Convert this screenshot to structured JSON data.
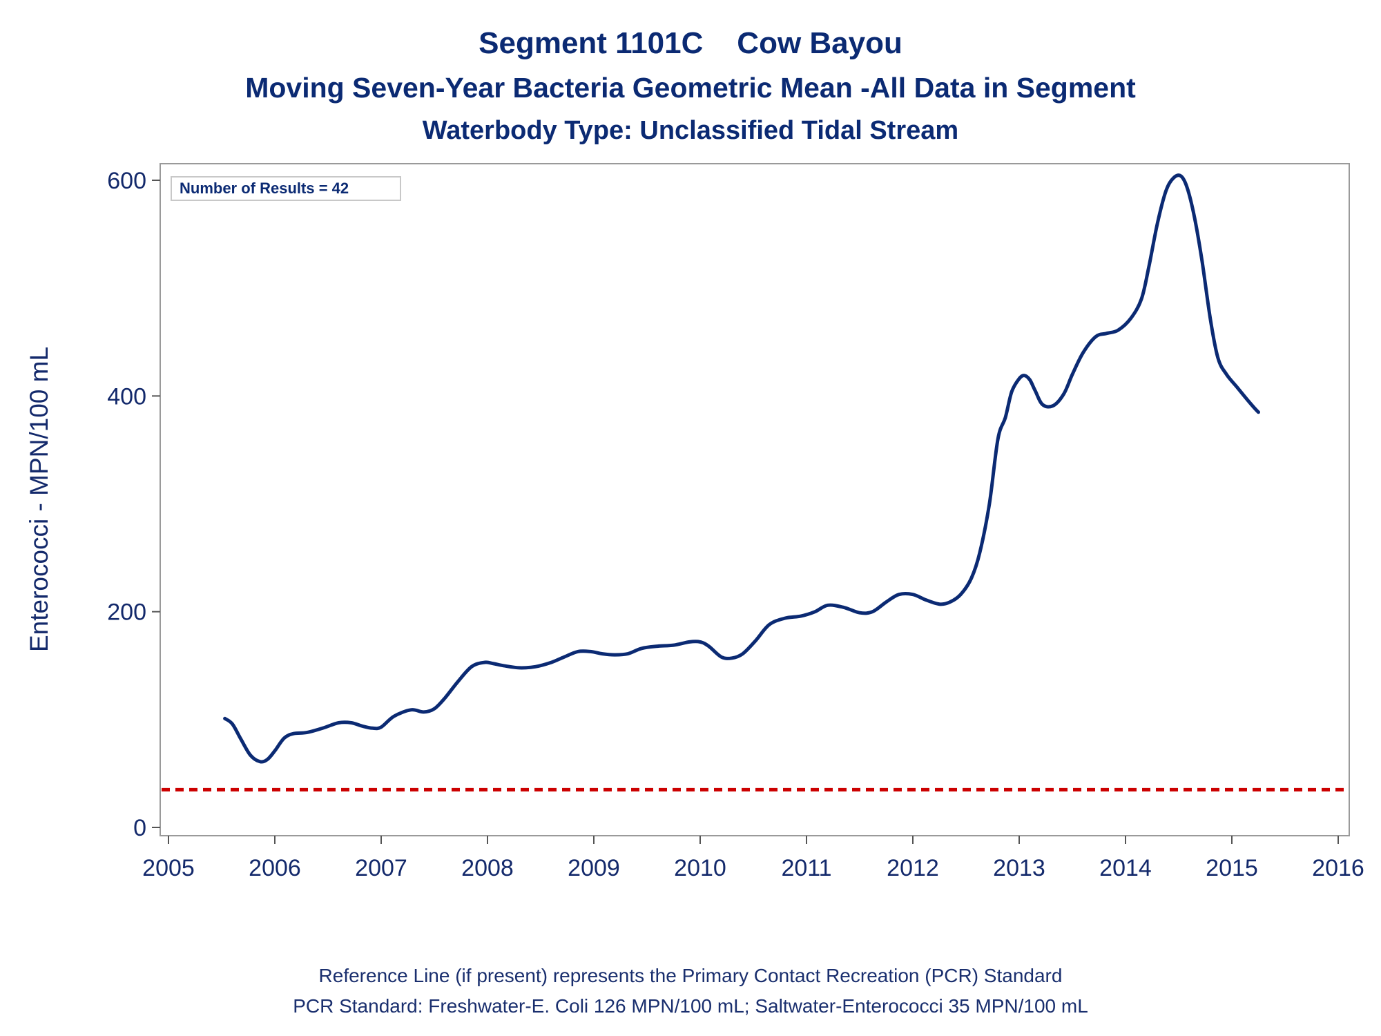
{
  "titles": {
    "line1": "Segment 1101C    Cow Bayou",
    "line2": "Moving Seven-Year Bacteria Geometric Mean -All Data in Segment",
    "line3": "Waterbody Type: Unclassified Tidal Stream"
  },
  "footnotes": {
    "line1": "Reference Line (if present) represents the Primary Contact Recreation (PCR) Standard",
    "line2": "PCR Standard: Freshwater-E. Coli 126 MPN/100 mL; Saltwater-Enterococci 35 MPN/100 mL"
  },
  "colors": {
    "series": "#0b2a73",
    "reference_line": "#cc0000",
    "axis_text": "#13296b",
    "frame": "#9a9a9a"
  },
  "chart_data": {
    "type": "line",
    "title": "Segment 1101C    Cow Bayou",
    "subtitle": "Moving Seven-Year Bacteria Geometric Mean -All Data in Segment",
    "xlabel": "",
    "ylabel": "Enterococci - MPN/100 mL",
    "xlim": [
      2005,
      2016
    ],
    "ylim": [
      -10,
      615
    ],
    "x_ticks": [
      2005,
      2006,
      2007,
      2008,
      2009,
      2010,
      2011,
      2012,
      2013,
      2014,
      2015,
      2016
    ],
    "y_ticks": [
      0,
      200,
      400,
      600
    ],
    "grid": false,
    "annotation": "Number of Results = 42",
    "reference_line": {
      "y": 35,
      "style": "dashed"
    },
    "series": [
      {
        "x": [
          2005.53,
          2005.6,
          2005.68,
          2005.77,
          2005.86,
          2005.93,
          2006.0,
          2006.09,
          2006.18,
          2006.3,
          2006.45,
          2006.6,
          2006.72,
          2006.82,
          2006.92,
          2007.0,
          2007.12,
          2007.28,
          2007.4,
          2007.5,
          2007.6,
          2007.72,
          2007.85,
          2007.97,
          2008.05,
          2008.15,
          2008.3,
          2008.45,
          2008.6,
          2008.72,
          2008.85,
          2008.97,
          2009.08,
          2009.2,
          2009.32,
          2009.45,
          2009.6,
          2009.75,
          2009.9,
          2010.0,
          2010.08,
          2010.2,
          2010.3,
          2010.4,
          2010.52,
          2010.65,
          2010.8,
          2010.95,
          2011.08,
          2011.2,
          2011.35,
          2011.5,
          2011.62,
          2011.75,
          2011.87,
          2012.0,
          2012.12,
          2012.25,
          2012.35,
          2012.45,
          2012.55,
          2012.63,
          2012.72,
          2012.8,
          2012.87,
          2012.93,
          2013.0,
          2013.05,
          2013.1,
          2013.15,
          2013.22,
          2013.32,
          2013.42,
          2013.5,
          2013.6,
          2013.72,
          2013.82,
          2013.93,
          2014.05,
          2014.15,
          2014.22,
          2014.3,
          2014.38,
          2014.45,
          2014.52,
          2014.58,
          2014.65,
          2014.72,
          2014.8,
          2014.87,
          2014.95,
          2015.05,
          2015.15,
          2015.22,
          2015.25
        ],
        "values": [
          101,
          96,
          82,
          67,
          61,
          63,
          71,
          83,
          87,
          88,
          92,
          97,
          97,
          94,
          92,
          93,
          103,
          109,
          107,
          110,
          120,
          135,
          149,
          153,
          152,
          150,
          148,
          149,
          153,
          158,
          163,
          163,
          161,
          160,
          161,
          166,
          168,
          169,
          172,
          172,
          168,
          158,
          157,
          161,
          173,
          188,
          194,
          196,
          200,
          206,
          204,
          199,
          200,
          209,
          216,
          216,
          211,
          207,
          209,
          216,
          231,
          255,
          300,
          360,
          380,
          404,
          416,
          419,
          415,
          405,
          392,
          391,
          402,
          420,
          440,
          455,
          458,
          461,
          472,
          490,
          520,
          560,
          590,
          602,
          604,
          593,
          565,
          525,
          470,
          435,
          420,
          408,
          396,
          388,
          385
        ]
      }
    ]
  }
}
